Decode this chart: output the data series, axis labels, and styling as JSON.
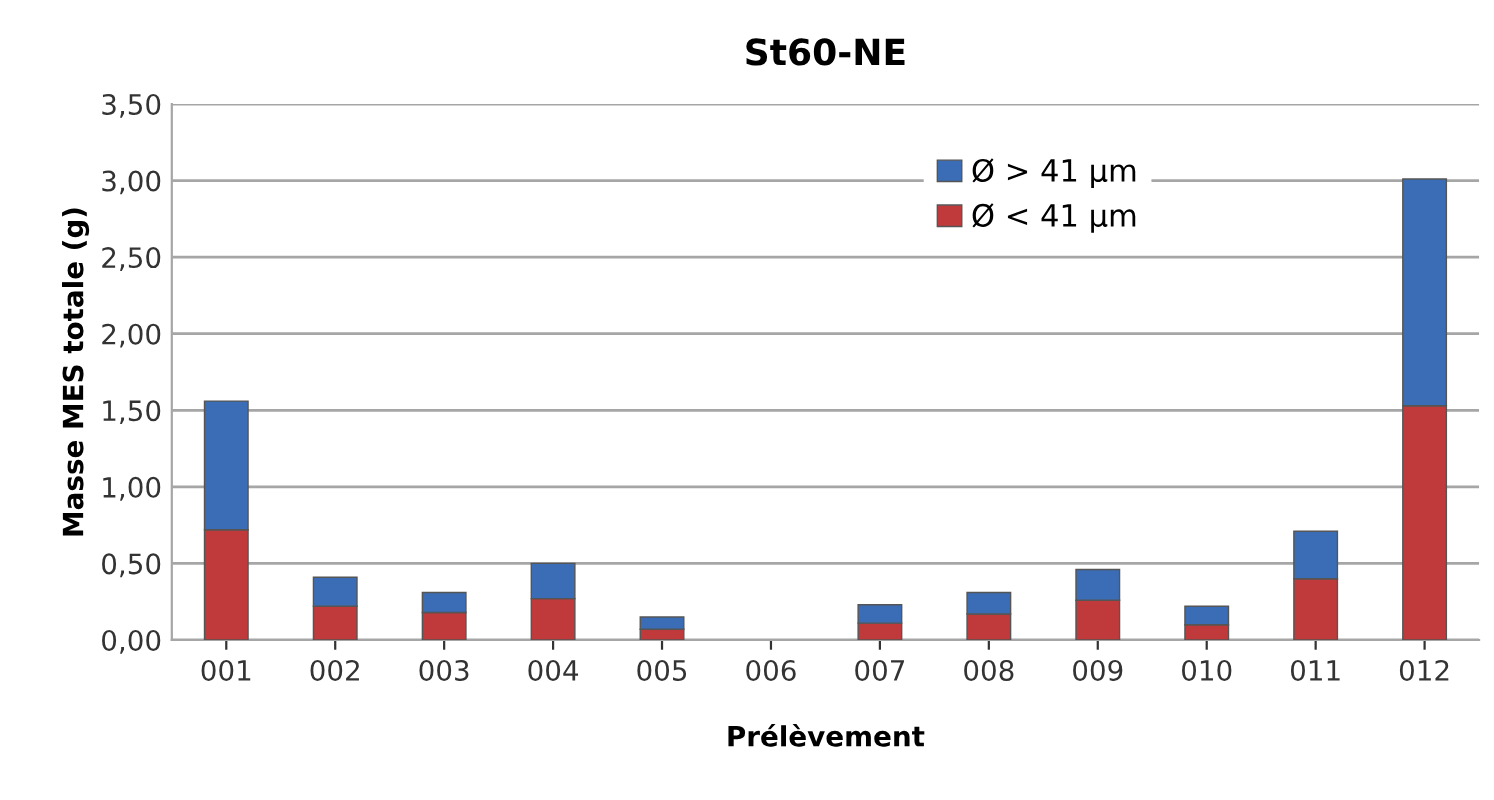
{
  "chart_data": {
    "type": "bar",
    "title": "St60-NE",
    "xlabel": "Prélèvement",
    "ylabel": "Masse MES totale (g)",
    "categories": [
      "001",
      "002",
      "003",
      "004",
      "005",
      "006",
      "007",
      "008",
      "009",
      "010",
      "011",
      "012"
    ],
    "stacked": true,
    "series": [
      {
        "name": "Ø < 41 µm",
        "color": "#c0393b",
        "values": [
          0.72,
          0.22,
          0.18,
          0.27,
          0.07,
          null,
          0.11,
          0.17,
          0.26,
          0.1,
          0.4,
          1.53
        ]
      },
      {
        "name": "Ø > 41 µm",
        "color": "#3a6db5",
        "values": [
          0.84,
          0.19,
          0.13,
          0.23,
          0.08,
          null,
          0.12,
          0.14,
          0.2,
          0.12,
          0.31,
          1.48
        ]
      }
    ],
    "ylim": [
      0,
      3.5
    ],
    "yticks": [
      {
        "value": 0,
        "label": "0,00"
      },
      {
        "value": 0.5,
        "label": "0,50"
      },
      {
        "value": 1,
        "label": "1,00"
      },
      {
        "value": 1.5,
        "label": "1,50"
      },
      {
        "value": 2,
        "label": "2,00"
      },
      {
        "value": 2.5,
        "label": "2,50"
      },
      {
        "value": 3,
        "label": "3,00"
      },
      {
        "value": 3.5,
        "label": "3,50"
      }
    ],
    "grid": "y",
    "legend": "top right"
  }
}
